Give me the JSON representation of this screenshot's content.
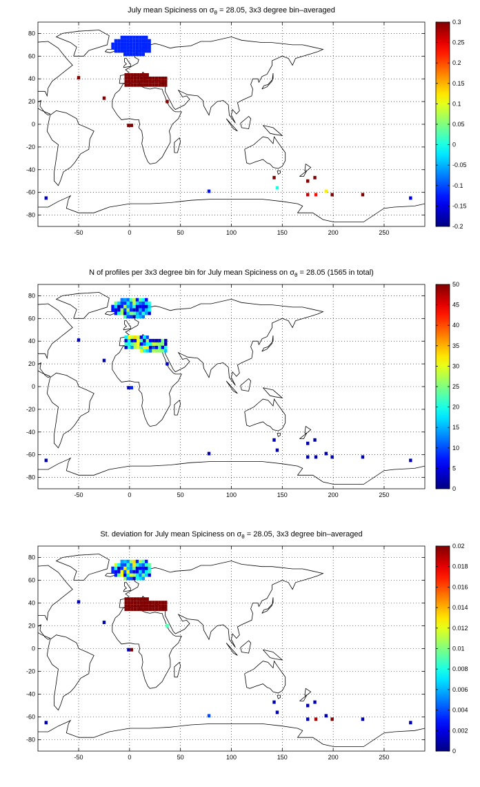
{
  "chart_data": [
    {
      "type": "heatmap",
      "title_pre": "July mean Spiciness on ",
      "title_sym": "σ",
      "title_sub": "θ",
      "title_post": " = 28.05, 3x3 degree bin–averaged",
      "xlim": [
        -90,
        290
      ],
      "ylim": [
        -90,
        90
      ],
      "xticks": [
        "-50",
        "0",
        "50",
        "100",
        "150",
        "200",
        "250"
      ],
      "yticks": [
        "80",
        "60",
        "40",
        "20",
        "0",
        "-20",
        "-40",
        "-60",
        "-80"
      ],
      "clim": [
        -0.2,
        0.3
      ],
      "cticks": [
        "0.3",
        "0.25",
        "0.2",
        "0.15",
        "0.1",
        "0.05",
        "0",
        "-0.05",
        "-0.1",
        "-0.15",
        "-0.2"
      ],
      "grid": true,
      "regions": [
        {
          "name": "Nordic Seas",
          "lon": [
            -18,
            21
          ],
          "lat": [
            60,
            78
          ],
          "value": -0.12
        },
        {
          "name": "Mediterranean",
          "lon": [
            -5,
            36
          ],
          "lat": [
            33,
            45
          ],
          "value": 0.3
        }
      ],
      "bins": [
        {
          "lon": -50,
          "lat": 41,
          "value": 0.3
        },
        {
          "lon": -25,
          "lat": 23,
          "value": 0.3
        },
        {
          "lon": -1,
          "lat": -1,
          "value": 0.3
        },
        {
          "lon": 2,
          "lat": -1,
          "value": 0.3
        },
        {
          "lon": 37,
          "lat": 20,
          "value": 0.3
        },
        {
          "lon": -82,
          "lat": -65,
          "value": -0.17
        },
        {
          "lon": 78,
          "lat": -59,
          "value": -0.13
        },
        {
          "lon": 142,
          "lat": -47,
          "value": 0.3
        },
        {
          "lon": 145,
          "lat": -56,
          "value": 0.0
        },
        {
          "lon": 175,
          "lat": -50,
          "value": 0.3
        },
        {
          "lon": 182,
          "lat": -47,
          "value": 0.3
        },
        {
          "lon": 175,
          "lat": -62,
          "value": 0.27
        },
        {
          "lon": 183,
          "lat": -62,
          "value": 0.23
        },
        {
          "lon": 193,
          "lat": -59,
          "value": 0.12
        },
        {
          "lon": 199,
          "lat": -62,
          "value": 0.3
        },
        {
          "lon": 229,
          "lat": -62,
          "value": 0.3
        },
        {
          "lon": 276,
          "lat": -65,
          "value": -0.15
        }
      ]
    },
    {
      "type": "heatmap",
      "title_pre": "N of profiles per 3x3 degree bin for July mean Spiciness on ",
      "title_sym": "σ",
      "title_sub": "θ",
      "title_post": " = 28.05 (1565 in total)",
      "xlim": [
        -90,
        290
      ],
      "ylim": [
        -90,
        90
      ],
      "xticks": [
        "-50",
        "0",
        "50",
        "100",
        "150",
        "200",
        "250"
      ],
      "yticks": [
        "80",
        "60",
        "40",
        "20",
        "0",
        "-20",
        "-40",
        "-60",
        "-80"
      ],
      "clim": [
        0,
        50
      ],
      "cticks": [
        "50",
        "45",
        "40",
        "35",
        "30",
        "25",
        "20",
        "15",
        "10",
        "5",
        "0"
      ],
      "grid": true,
      "regions": [
        {
          "name": "Nordic Seas",
          "lon": [
            -18,
            21
          ],
          "lat": [
            60,
            78
          ],
          "value": 10,
          "variable": true
        },
        {
          "name": "Mediterranean",
          "lon": [
            -5,
            36
          ],
          "lat": [
            30,
            45
          ],
          "value": 15,
          "variable": true
        }
      ],
      "bins": [
        {
          "lon": -50,
          "lat": 41,
          "value": 2
        },
        {
          "lon": -25,
          "lat": 23,
          "value": 2
        },
        {
          "lon": -1,
          "lat": -1,
          "value": 3
        },
        {
          "lon": 2,
          "lat": -1,
          "value": 8
        },
        {
          "lon": 37,
          "lat": 20,
          "value": 3
        },
        {
          "lon": -82,
          "lat": -65,
          "value": 2
        },
        {
          "lon": 78,
          "lat": -59,
          "value": 2
        },
        {
          "lon": 142,
          "lat": -47,
          "value": 3
        },
        {
          "lon": 145,
          "lat": -56,
          "value": 2
        },
        {
          "lon": 175,
          "lat": -50,
          "value": 2
        },
        {
          "lon": 182,
          "lat": -47,
          "value": 2
        },
        {
          "lon": 175,
          "lat": -62,
          "value": 2
        },
        {
          "lon": 183,
          "lat": -62,
          "value": 2
        },
        {
          "lon": 193,
          "lat": -59,
          "value": 2
        },
        {
          "lon": 199,
          "lat": -62,
          "value": 2
        },
        {
          "lon": 229,
          "lat": -62,
          "value": 2
        },
        {
          "lon": 276,
          "lat": -65,
          "value": 2
        }
      ]
    },
    {
      "type": "heatmap",
      "title_pre": "St. deviation for July mean Spiciness on ",
      "title_sym": "σ",
      "title_sub": "θ",
      "title_post": " = 28.05, 3x3 degree bin–averaged",
      "xlim": [
        -90,
        290
      ],
      "ylim": [
        -90,
        90
      ],
      "xticks": [
        "-50",
        "0",
        "50",
        "100",
        "150",
        "200",
        "250"
      ],
      "yticks": [
        "80",
        "60",
        "40",
        "20",
        "0",
        "-20",
        "-40",
        "-60",
        "-80"
      ],
      "clim": [
        0,
        0.02
      ],
      "cticks": [
        "0.02",
        "0.018",
        "0.016",
        "0.014",
        "0.012",
        "0.01",
        "0.008",
        "0.006",
        "0.004",
        "0.002",
        "0"
      ],
      "grid": true,
      "regions": [
        {
          "name": "Nordic Seas",
          "lon": [
            -18,
            21
          ],
          "lat": [
            60,
            78
          ],
          "value": 0.006,
          "variable": true
        },
        {
          "name": "Mediterranean",
          "lon": [
            -5,
            36
          ],
          "lat": [
            33,
            45
          ],
          "value": 0.02
        }
      ],
      "bins": [
        {
          "lon": -50,
          "lat": 41,
          "value": 0.001
        },
        {
          "lon": -25,
          "lat": 23,
          "value": 0.001
        },
        {
          "lon": -1,
          "lat": -1,
          "value": 0.001
        },
        {
          "lon": 2,
          "lat": -1,
          "value": 0.02
        },
        {
          "lon": 37,
          "lat": 20,
          "value": 0.009
        },
        {
          "lon": -82,
          "lat": -65,
          "value": 0.001
        },
        {
          "lon": 78,
          "lat": -59,
          "value": 0.004
        },
        {
          "lon": 142,
          "lat": -47,
          "value": 0.001
        },
        {
          "lon": 145,
          "lat": -56,
          "value": 0.001
        },
        {
          "lon": 175,
          "lat": -50,
          "value": 0.001
        },
        {
          "lon": 182,
          "lat": -47,
          "value": 0.001
        },
        {
          "lon": 175,
          "lat": -62,
          "value": 0.001
        },
        {
          "lon": 183,
          "lat": -62,
          "value": 0.019
        },
        {
          "lon": 193,
          "lat": -59,
          "value": 0.001
        },
        {
          "lon": 199,
          "lat": -62,
          "value": 0.02
        },
        {
          "lon": 229,
          "lat": -62,
          "value": 0.001
        },
        {
          "lon": 276,
          "lat": -65,
          "value": 0.001
        }
      ]
    }
  ]
}
